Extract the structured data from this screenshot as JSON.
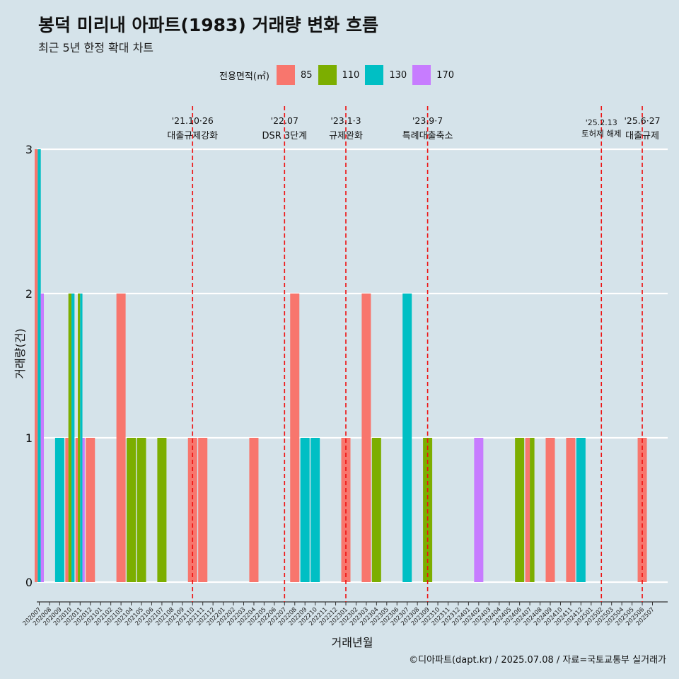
{
  "title": "봉덕 미리내 아파트(1983) 거래량 변화 흐름",
  "subtitle": "최근 5년 한정 확대 차트",
  "caption": "©디아파트(dapt.kr) / 2025.07.08 / 자료=국토교통부 실거래가",
  "legend": {
    "title": "전용면적(㎡)",
    "items": [
      {
        "label": "85",
        "color": "#f8766d"
      },
      {
        "label": "110",
        "color": "#7cae00"
      },
      {
        "label": "130",
        "color": "#00bfc4"
      },
      {
        "label": "170",
        "color": "#c77cff"
      }
    ]
  },
  "chart_data": {
    "type": "bar",
    "xlabel": "거래년월",
    "ylabel": "거래량(건)",
    "ylim": [
      0,
      3
    ],
    "yticks": [
      0,
      1,
      2,
      3
    ],
    "grid": true,
    "legend_position": "top",
    "categories": [
      "202007",
      "202008",
      "202009",
      "202010",
      "202011",
      "202012",
      "202101",
      "202102",
      "202103",
      "202104",
      "202105",
      "202106",
      "202107",
      "202108",
      "202109",
      "202110",
      "202111",
      "202112",
      "202201",
      "202202",
      "202203",
      "202204",
      "202205",
      "202206",
      "202207",
      "202208",
      "202209",
      "202210",
      "202211",
      "202212",
      "202301",
      "202302",
      "202303",
      "202304",
      "202305",
      "202306",
      "202307",
      "202308",
      "202309",
      "202310",
      "202311",
      "202312",
      "202401",
      "202402",
      "202403",
      "202404",
      "202405",
      "202406",
      "202407",
      "202408",
      "202409",
      "202410",
      "202411",
      "202412",
      "202501",
      "202502",
      "202503",
      "202504",
      "202505",
      "202506",
      "202507"
    ],
    "series": [
      {
        "name": "85",
        "color": "#f8766d",
        "values": [
          3,
          0,
          0,
          1,
          1,
          1,
          0,
          0,
          2,
          0,
          0,
          0,
          0,
          0,
          0,
          1,
          1,
          0,
          0,
          0,
          0,
          1,
          0,
          0,
          0,
          2,
          0,
          0,
          0,
          0,
          1,
          0,
          2,
          0,
          0,
          0,
          0,
          0,
          0,
          0,
          0,
          0,
          0,
          0,
          0,
          0,
          0,
          0,
          1,
          0,
          1,
          0,
          1,
          0,
          0,
          0,
          0,
          0,
          0,
          1,
          0
        ]
      },
      {
        "name": "110",
        "color": "#7cae00",
        "values": [
          0,
          0,
          0,
          2,
          2,
          0,
          0,
          0,
          0,
          1,
          1,
          0,
          1,
          0,
          0,
          0,
          0,
          0,
          0,
          0,
          0,
          0,
          0,
          0,
          0,
          0,
          0,
          0,
          0,
          0,
          0,
          0,
          0,
          1,
          0,
          0,
          0,
          0,
          1,
          0,
          0,
          0,
          0,
          0,
          0,
          0,
          0,
          1,
          1,
          0,
          0,
          0,
          0,
          0,
          0,
          0,
          0,
          0,
          0,
          0,
          0
        ]
      },
      {
        "name": "130",
        "color": "#00bfc4",
        "values": [
          3,
          0,
          1,
          2,
          2,
          0,
          0,
          0,
          0,
          0,
          0,
          0,
          0,
          0,
          0,
          0,
          0,
          0,
          0,
          0,
          0,
          0,
          0,
          0,
          0,
          0,
          1,
          1,
          0,
          0,
          0,
          0,
          0,
          0,
          0,
          0,
          2,
          0,
          0,
          0,
          0,
          0,
          0,
          0,
          0,
          0,
          0,
          0,
          0,
          0,
          0,
          0,
          0,
          1,
          0,
          0,
          0,
          0,
          0,
          0,
          0
        ]
      },
      {
        "name": "170",
        "color": "#c77cff",
        "values": [
          2,
          0,
          0,
          0,
          1,
          0,
          0,
          0,
          0,
          0,
          0,
          0,
          0,
          0,
          0,
          0,
          0,
          0,
          0,
          0,
          0,
          0,
          0,
          0,
          0,
          0,
          0,
          0,
          0,
          0,
          0,
          0,
          0,
          0,
          0,
          0,
          0,
          0,
          0,
          0,
          0,
          0,
          0,
          1,
          0,
          0,
          0,
          0,
          0,
          0,
          0,
          0,
          0,
          0,
          0,
          0,
          0,
          0,
          0,
          0,
          0
        ]
      }
    ],
    "events": [
      {
        "x": "202110",
        "date": "'21.10·26",
        "label": "대출규제강화"
      },
      {
        "x": "202207",
        "date": "'22.07",
        "label": "DSR 3단계"
      },
      {
        "x": "202301",
        "date": "'23.1·3",
        "label": "규제완화"
      },
      {
        "x": "202309",
        "date": "'23.9·7",
        "label": "특례대출축소"
      },
      {
        "x": "202502",
        "date": "'25.2.13",
        "label": "토허제 해제"
      },
      {
        "x": "202506",
        "date": "'25.6·27",
        "label": "대출규제"
      }
    ]
  }
}
